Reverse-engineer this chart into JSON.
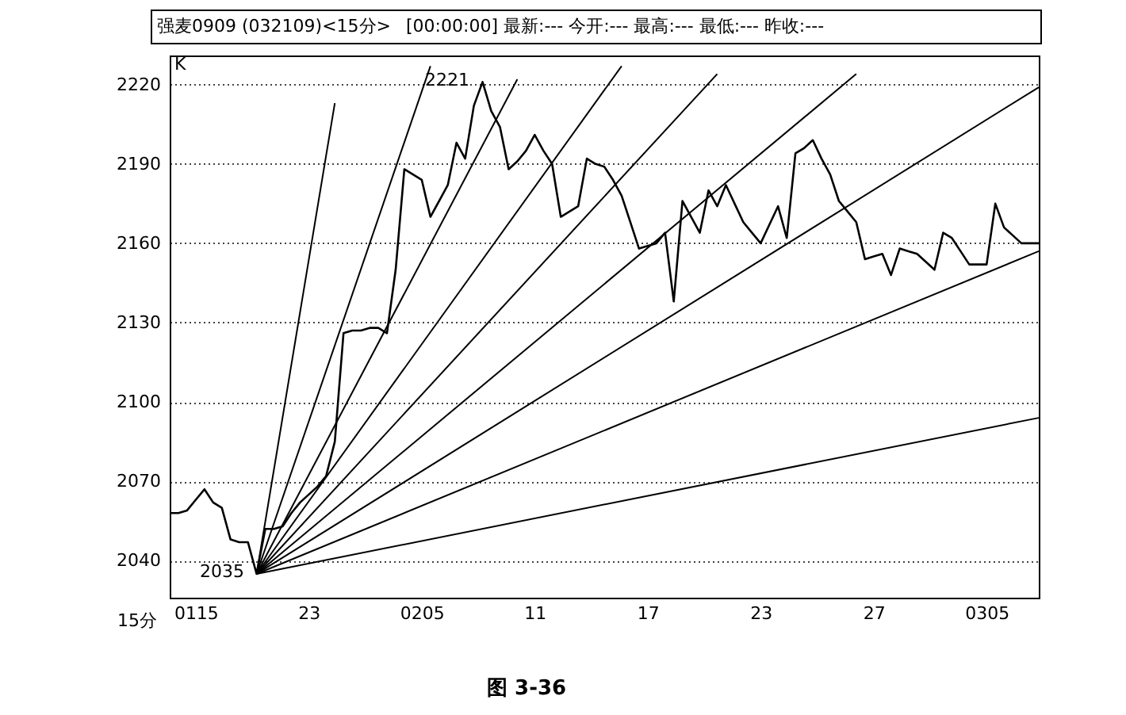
{
  "chart_data": {
    "type": "line",
    "title": "强麦0909 (032109)<15分>",
    "subtitle": "[00:00:00] 最新:--- 今开:--- 最高:--- 最低:--- 昨收:---",
    "categories": [
      null,
      null,
      null,
      "0115",
      null,
      null,
      null,
      null,
      null,
      null,
      null,
      null,
      null,
      null,
      null,
      null,
      "23",
      null,
      null,
      null,
      null,
      null,
      null,
      null,
      null,
      null,
      null,
      null,
      null,
      "0205",
      null,
      null,
      null,
      null,
      null,
      null,
      null,
      null,
      null,
      null,
      null,
      null,
      "11",
      null,
      null,
      null,
      null,
      null,
      null,
      null,
      null,
      null,
      null,
      null,
      null,
      "17",
      null,
      null,
      null,
      null,
      null,
      null,
      null,
      null,
      null,
      null,
      null,
      null,
      "23",
      null,
      null,
      null,
      null,
      null,
      null,
      null,
      null,
      null,
      null,
      null,
      null,
      "27",
      null,
      null,
      null,
      null,
      null,
      null,
      null,
      null,
      null,
      null,
      null,
      null,
      "0305",
      null,
      null,
      null,
      null,
      null,
      null
    ],
    "ylim": [
      2026,
      2231
    ],
    "yticks": [
      2040,
      2070,
      2100,
      2130,
      2160,
      2190,
      2220
    ],
    "grid": "y",
    "marker": "none",
    "line_style": "solid",
    "series": [
      {
        "color": "#000000",
        "values": [
          2058,
          2058,
          2059,
          2063,
          2067,
          2062,
          2060,
          2048,
          2047,
          2047,
          2035,
          2052,
          2052,
          2053,
          2058,
          2062,
          2065,
          2068,
          2072,
          2085,
          2126,
          2127,
          2127,
          2128,
          2128,
          2126,
          2150,
          2188,
          2186,
          2184,
          2170,
          2176,
          2182,
          2198,
          2192,
          2212,
          2221,
          2210,
          2204,
          2188,
          2191,
          2195,
          2201,
          2195,
          2190,
          2170,
          2172,
          2174,
          2192,
          2190,
          2189,
          2184,
          2178,
          2168,
          2158,
          2159,
          2160,
          2164,
          2138,
          2176,
          2170,
          2164,
          2180,
          2174,
          2182,
          2175,
          2168,
          2164,
          2160,
          2167,
          2174,
          2162,
          2194,
          2196,
          2199,
          2192,
          2186,
          2176,
          2172,
          2168,
          2154,
          2155,
          2156,
          2148,
          2158,
          2157,
          2156,
          2153,
          2150,
          2164,
          2162,
          2157,
          2152,
          2152,
          2152,
          2175,
          2166,
          2163,
          2160,
          2160,
          2160
        ]
      },
      {
        "color": "#000000",
        "values": [
          null,
          null,
          null,
          null,
          null,
          null,
          null,
          null,
          null,
          null,
          2035,
          null,
          null,
          null,
          null,
          null,
          null,
          null,
          null,
          2213,
          null,
          null,
          null,
          null,
          null,
          null,
          null,
          null,
          null,
          null,
          null,
          null,
          null,
          null,
          null,
          null,
          null,
          null,
          null,
          null,
          null,
          null,
          null,
          null,
          null,
          null,
          null,
          null,
          null,
          null,
          null,
          null,
          null,
          null,
          null,
          null,
          null,
          null,
          null,
          null,
          null,
          null,
          null,
          null,
          null,
          null,
          null,
          null,
          null,
          null,
          null,
          null,
          null,
          null,
          null,
          null,
          null,
          null,
          null,
          null,
          null,
          null,
          null,
          null,
          null,
          null,
          null,
          null,
          null,
          null,
          null,
          null,
          null,
          null,
          null,
          null,
          null,
          null,
          null,
          null,
          null
        ]
      },
      {
        "color": "#000000",
        "values": [
          null,
          null,
          null,
          null,
          null,
          null,
          null,
          null,
          null,
          null,
          2035,
          null,
          null,
          null,
          null,
          null,
          null,
          null,
          null,
          null,
          null,
          null,
          null,
          null,
          null,
          null,
          null,
          null,
          null,
          null,
          2227,
          null,
          null,
          null,
          null,
          null,
          null,
          null,
          null,
          null,
          null,
          null,
          null,
          null,
          null,
          null,
          null,
          null,
          null,
          null,
          null,
          null,
          null,
          null,
          null,
          null,
          null,
          null,
          null,
          null,
          null,
          null,
          null,
          null,
          null,
          null,
          null,
          null,
          null,
          null,
          null,
          null,
          null,
          null,
          null,
          null,
          null,
          null,
          null,
          null,
          null,
          null,
          null,
          null,
          null,
          null,
          null,
          null,
          null,
          null,
          null,
          null,
          null,
          null,
          null,
          null,
          null,
          null,
          null,
          null,
          null
        ]
      },
      {
        "color": "#000000",
        "values": [
          null,
          null,
          null,
          null,
          null,
          null,
          null,
          null,
          null,
          null,
          2035,
          null,
          null,
          null,
          null,
          null,
          null,
          null,
          null,
          null,
          null,
          null,
          null,
          null,
          null,
          null,
          null,
          null,
          null,
          null,
          null,
          null,
          null,
          null,
          null,
          null,
          null,
          null,
          null,
          null,
          2222,
          null,
          null,
          null,
          null,
          null,
          null,
          null,
          null,
          null,
          null,
          null,
          null,
          null,
          null,
          null,
          null,
          null,
          null,
          null,
          null,
          null,
          null,
          null,
          null,
          null,
          null,
          null,
          null,
          null,
          null,
          null,
          null,
          null,
          null,
          null,
          null,
          null,
          null,
          null,
          null,
          null,
          null,
          null,
          null,
          null,
          null,
          null,
          null,
          null,
          null,
          null,
          null,
          null,
          null,
          null,
          null,
          null,
          null,
          null,
          null
        ]
      },
      {
        "color": "#000000",
        "values": [
          null,
          null,
          null,
          null,
          null,
          null,
          null,
          null,
          null,
          null,
          2035,
          null,
          null,
          null,
          null,
          null,
          null,
          null,
          null,
          null,
          null,
          null,
          null,
          null,
          null,
          null,
          null,
          null,
          null,
          null,
          null,
          null,
          null,
          null,
          null,
          null,
          null,
          null,
          null,
          null,
          null,
          null,
          null,
          null,
          null,
          null,
          null,
          null,
          null,
          null,
          null,
          null,
          2227,
          null,
          null,
          null,
          null,
          null,
          null,
          null,
          null,
          null,
          null,
          null,
          null,
          null,
          null,
          null,
          null,
          null,
          null,
          null,
          null,
          null,
          null,
          null,
          null,
          null,
          null,
          null,
          null,
          null,
          null,
          null,
          null,
          null,
          null,
          null,
          null,
          null,
          null,
          null,
          null,
          null,
          null,
          null,
          null,
          null,
          null,
          null,
          null
        ]
      },
      {
        "color": "#000000",
        "values": [
          null,
          null,
          null,
          null,
          null,
          null,
          null,
          null,
          null,
          null,
          2035,
          null,
          null,
          null,
          null,
          null,
          null,
          null,
          null,
          null,
          null,
          null,
          null,
          null,
          null,
          null,
          null,
          null,
          null,
          null,
          null,
          null,
          null,
          null,
          null,
          null,
          null,
          null,
          null,
          null,
          null,
          null,
          null,
          null,
          null,
          null,
          null,
          null,
          null,
          null,
          null,
          null,
          null,
          null,
          null,
          null,
          null,
          null,
          null,
          null,
          null,
          null,
          null,
          2224,
          null,
          null,
          null,
          null,
          null,
          null,
          null,
          null,
          null,
          null,
          null,
          null,
          null,
          null,
          null,
          null,
          null,
          null,
          null,
          null,
          null,
          null,
          null,
          null,
          null,
          null,
          null,
          null,
          null,
          null,
          null,
          null,
          null,
          null,
          null,
          null,
          null
        ]
      },
      {
        "color": "#000000",
        "values": [
          null,
          null,
          null,
          null,
          null,
          null,
          null,
          null,
          null,
          null,
          2035,
          null,
          null,
          null,
          null,
          null,
          null,
          null,
          null,
          null,
          null,
          null,
          null,
          null,
          null,
          null,
          null,
          null,
          null,
          null,
          null,
          null,
          null,
          null,
          null,
          null,
          null,
          null,
          null,
          null,
          null,
          null,
          null,
          null,
          null,
          null,
          null,
          null,
          null,
          null,
          null,
          null,
          null,
          null,
          null,
          null,
          null,
          null,
          null,
          null,
          null,
          null,
          null,
          null,
          null,
          null,
          null,
          null,
          null,
          null,
          null,
          null,
          null,
          null,
          null,
          null,
          null,
          null,
          null,
          2224,
          null,
          null,
          null,
          null,
          null,
          null,
          null,
          null,
          null,
          null,
          null,
          null,
          null,
          null,
          null,
          null,
          null,
          null,
          null,
          null,
          null
        ]
      },
      {
        "color": "#000000",
        "values": [
          null,
          null,
          null,
          null,
          null,
          null,
          null,
          null,
          null,
          null,
          2035,
          null,
          null,
          null,
          null,
          null,
          null,
          null,
          null,
          null,
          null,
          null,
          null,
          null,
          null,
          null,
          null,
          null,
          null,
          null,
          null,
          null,
          null,
          null,
          null,
          null,
          null,
          null,
          null,
          null,
          null,
          null,
          null,
          null,
          null,
          null,
          null,
          null,
          null,
          null,
          null,
          null,
          null,
          null,
          null,
          null,
          null,
          null,
          null,
          null,
          null,
          null,
          null,
          null,
          null,
          null,
          null,
          null,
          null,
          null,
          null,
          null,
          null,
          null,
          null,
          null,
          null,
          null,
          null,
          null,
          null,
          null,
          null,
          null,
          null,
          null,
          null,
          null,
          null,
          null,
          null,
          null,
          null,
          null,
          null,
          null,
          null,
          null,
          null,
          null,
          2219
        ]
      },
      {
        "color": "#000000",
        "values": [
          null,
          null,
          null,
          null,
          null,
          null,
          null,
          null,
          null,
          null,
          2035,
          null,
          null,
          null,
          null,
          null,
          null,
          null,
          null,
          null,
          null,
          null,
          null,
          null,
          null,
          null,
          null,
          null,
          null,
          null,
          null,
          null,
          null,
          null,
          null,
          null,
          null,
          null,
          null,
          null,
          null,
          null,
          null,
          null,
          null,
          null,
          null,
          null,
          null,
          null,
          null,
          null,
          null,
          null,
          null,
          null,
          null,
          null,
          null,
          null,
          null,
          null,
          null,
          null,
          null,
          null,
          null,
          null,
          null,
          null,
          null,
          null,
          null,
          null,
          null,
          null,
          null,
          null,
          null,
          null,
          null,
          null,
          null,
          null,
          null,
          null,
          null,
          null,
          null,
          null,
          null,
          null,
          null,
          null,
          null,
          null,
          null,
          null,
          null,
          null,
          2157
        ]
      },
      {
        "color": "#000000",
        "values": [
          null,
          null,
          null,
          null,
          null,
          null,
          null,
          null,
          null,
          null,
          2035,
          null,
          null,
          null,
          null,
          null,
          null,
          null,
          null,
          null,
          null,
          null,
          null,
          null,
          null,
          null,
          null,
          null,
          null,
          null,
          null,
          null,
          null,
          null,
          null,
          null,
          null,
          null,
          null,
          null,
          null,
          null,
          null,
          null,
          null,
          null,
          null,
          null,
          null,
          null,
          null,
          null,
          null,
          null,
          null,
          null,
          null,
          null,
          null,
          null,
          null,
          null,
          null,
          null,
          null,
          null,
          null,
          null,
          null,
          null,
          null,
          null,
          null,
          null,
          null,
          null,
          null,
          null,
          null,
          null,
          null,
          null,
          null,
          null,
          null,
          null,
          null,
          null,
          null,
          null,
          null,
          null,
          null,
          null,
          null,
          null,
          null,
          null,
          null,
          null,
          2094
        ]
      }
    ],
    "annotations": [
      "K",
      "2221",
      "2035",
      "15分",
      "图 3-36"
    ]
  }
}
